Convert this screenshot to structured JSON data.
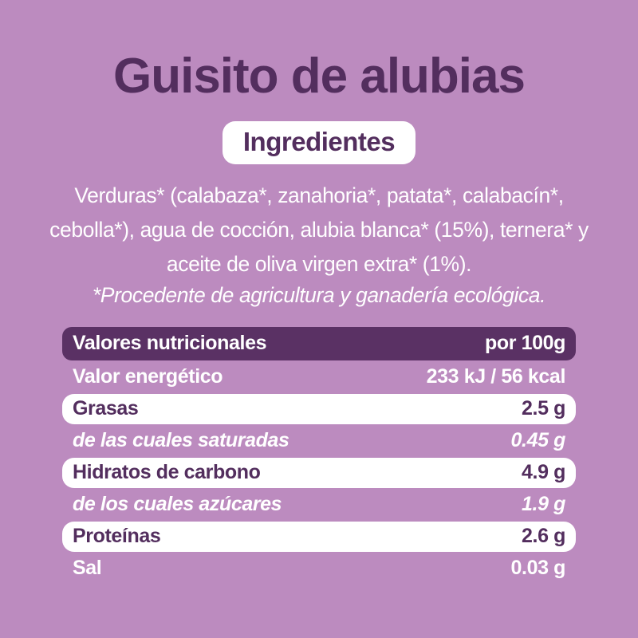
{
  "colors": {
    "background": "#bc8bbf",
    "dark_purple": "#532e5e",
    "header_bg": "#5a3164",
    "white": "#ffffff"
  },
  "title": "Guisito de alubias",
  "ingredients": {
    "heading": "Ingredientes",
    "text": "Verduras* (calabaza*, zanahoria*, patata*, calabacín*, cebolla*), agua de cocción, alubia blanca* (15%), ternera* y aceite de oliva virgen extra* (1%).",
    "note": "*Procedente de agricultura y ganadería ecológica."
  },
  "nutrition": {
    "header": {
      "label": "Valores nutricionales",
      "value": "por 100g"
    },
    "rows": [
      {
        "label": "Valor energético",
        "value": "233 kJ / 56 kcal"
      },
      {
        "label": "Grasas",
        "value": "2.5 g"
      },
      {
        "label": "de las cuales saturadas",
        "value": "0.45 g"
      },
      {
        "label": "Hidratos de carbono",
        "value": "4.9 g"
      },
      {
        "label": "de los cuales azúcares",
        "value": "1.9 g"
      },
      {
        "label": "Proteínas",
        "value": "2.6 g"
      },
      {
        "label": "Sal",
        "value": "0.03 g"
      }
    ]
  }
}
